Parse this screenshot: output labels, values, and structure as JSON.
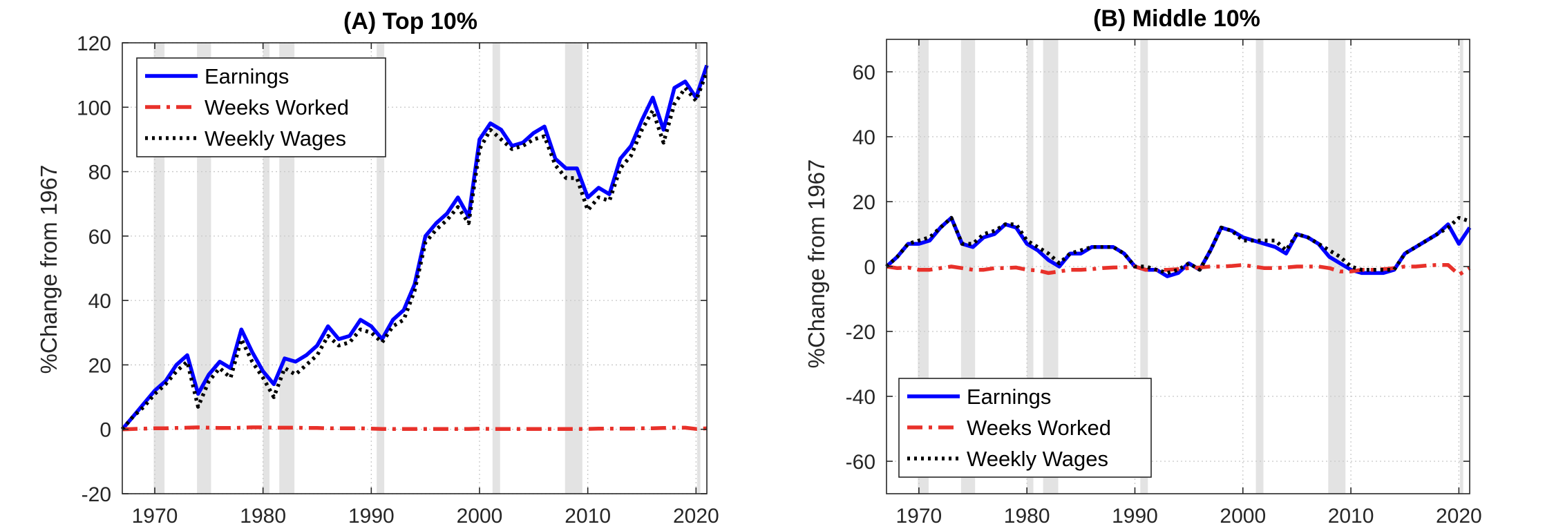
{
  "chart_data": [
    {
      "type": "line",
      "title": "(A) Top 10%",
      "xlabel": "",
      "ylabel": "%Change from 1967",
      "xlim": [
        1967,
        2021
      ],
      "ylim": [
        -20,
        120
      ],
      "xticks": [
        1970,
        1980,
        1990,
        2000,
        2010,
        2020
      ],
      "yticks": [
        -20,
        0,
        20,
        40,
        60,
        80,
        100,
        120
      ],
      "grid": true,
      "legend_position": "top-left",
      "recessions": [
        [
          1969.9,
          1970.9
        ],
        [
          1973.9,
          1975.2
        ],
        [
          1980.0,
          1980.6
        ],
        [
          1981.5,
          1982.9
        ],
        [
          1990.5,
          1991.2
        ],
        [
          2001.2,
          2001.9
        ],
        [
          2007.9,
          2009.5
        ],
        [
          2020.1,
          2020.4
        ]
      ],
      "series": [
        {
          "name": "Earnings",
          "color": "#0000ff",
          "style": "solid",
          "x": [
            1967,
            1968,
            1969,
            1970,
            1971,
            1972,
            1973,
            1974,
            1975,
            1976,
            1977,
            1978,
            1979,
            1980,
            1981,
            1982,
            1983,
            1984,
            1985,
            1986,
            1987,
            1988,
            1989,
            1990,
            1991,
            1992,
            1993,
            1994,
            1995,
            1996,
            1997,
            1998,
            1999,
            2000,
            2001,
            2002,
            2003,
            2004,
            2005,
            2006,
            2007,
            2008,
            2009,
            2010,
            2011,
            2012,
            2013,
            2014,
            2015,
            2016,
            2017,
            2018,
            2019,
            2020,
            2021
          ],
          "y": [
            0,
            4,
            8,
            12,
            15,
            20,
            23,
            11,
            17,
            21,
            19,
            31,
            24,
            18,
            14,
            22,
            21,
            23,
            26,
            32,
            28,
            29,
            34,
            32,
            28,
            34,
            37,
            45,
            60,
            64,
            67,
            72,
            66,
            90,
            95,
            93,
            88,
            89,
            92,
            94,
            84,
            81,
            81,
            72,
            75,
            73,
            84,
            88,
            96,
            103,
            93,
            106,
            108,
            103,
            113
          ]
        },
        {
          "name": "Weeks Worked",
          "color": "#e8312a",
          "style": "dashdot",
          "x": [
            1967,
            1968,
            1969,
            1970,
            1971,
            1972,
            1973,
            1974,
            1975,
            1976,
            1977,
            1978,
            1979,
            1980,
            1981,
            1982,
            1983,
            1984,
            1985,
            1986,
            1987,
            1988,
            1989,
            1990,
            1991,
            1992,
            1993,
            1994,
            1995,
            1996,
            1997,
            1998,
            1999,
            2000,
            2001,
            2002,
            2003,
            2004,
            2005,
            2006,
            2007,
            2008,
            2009,
            2010,
            2011,
            2012,
            2013,
            2014,
            2015,
            2016,
            2017,
            2018,
            2019,
            2020,
            2021
          ],
          "y": [
            0,
            0.1,
            0.2,
            0.3,
            0.3,
            0.4,
            0.5,
            0.6,
            0.5,
            0.4,
            0.4,
            0.5,
            0.6,
            0.6,
            0.5,
            0.5,
            0.5,
            0.4,
            0.4,
            0.3,
            0.3,
            0.3,
            0.3,
            0.2,
            0.1,
            0.1,
            0.1,
            0.1,
            0.1,
            0.1,
            0.1,
            0.1,
            0.1,
            0.2,
            0.1,
            0.1,
            0.1,
            0.1,
            0.1,
            0.1,
            0.1,
            0.1,
            0.1,
            0.1,
            0.2,
            0.2,
            0.2,
            0.2,
            0.3,
            0.3,
            0.4,
            0.5,
            0.5,
            0.1,
            0.3
          ]
        },
        {
          "name": "Weekly Wages",
          "color": "#000000",
          "style": "dotted",
          "x": [
            1967,
            1968,
            1969,
            1970,
            1971,
            1972,
            1973,
            1974,
            1975,
            1976,
            1977,
            1978,
            1979,
            1980,
            1981,
            1982,
            1983,
            1984,
            1985,
            1986,
            1987,
            1988,
            1989,
            1990,
            1991,
            1992,
            1993,
            1994,
            1995,
            1996,
            1997,
            1998,
            1999,
            2000,
            2001,
            2002,
            2003,
            2004,
            2005,
            2006,
            2007,
            2008,
            2009,
            2010,
            2011,
            2012,
            2013,
            2014,
            2015,
            2016,
            2017,
            2018,
            2019,
            2020,
            2021
          ],
          "y": [
            0,
            4,
            7,
            11,
            14,
            18,
            21,
            7,
            15,
            19,
            16,
            28,
            21,
            16,
            10,
            19,
            17,
            20,
            23,
            29,
            26,
            27,
            31,
            30,
            27,
            32,
            34,
            43,
            58,
            62,
            65,
            69,
            64,
            87,
            93,
            90,
            87,
            88,
            90,
            91,
            82,
            78,
            78,
            68,
            72,
            71,
            81,
            85,
            93,
            99,
            89,
            101,
            106,
            102,
            111
          ]
        }
      ]
    },
    {
      "type": "line",
      "title": "(B) Middle 10%",
      "xlabel": "",
      "ylabel": "%Change from 1967",
      "xlim": [
        1967,
        2021
      ],
      "ylim": [
        -70,
        70
      ],
      "xticks": [
        1970,
        1980,
        1990,
        2000,
        2010,
        2020
      ],
      "yticks": [
        -60,
        -40,
        -20,
        0,
        20,
        40,
        60
      ],
      "grid": true,
      "legend_position": "bottom-left",
      "recessions": [
        [
          1969.9,
          1970.9
        ],
        [
          1973.9,
          1975.2
        ],
        [
          1980.0,
          1980.6
        ],
        [
          1981.5,
          1982.9
        ],
        [
          1990.5,
          1991.2
        ],
        [
          2001.2,
          2001.9
        ],
        [
          2007.9,
          2009.5
        ],
        [
          2020.1,
          2020.4
        ]
      ],
      "series": [
        {
          "name": "Earnings",
          "color": "#0000ff",
          "style": "solid",
          "x": [
            1967,
            1968,
            1969,
            1970,
            1971,
            1972,
            1973,
            1974,
            1975,
            1976,
            1977,
            1978,
            1979,
            1980,
            1981,
            1982,
            1983,
            1984,
            1985,
            1986,
            1987,
            1988,
            1989,
            1990,
            1991,
            1992,
            1993,
            1994,
            1995,
            1996,
            1997,
            1998,
            1999,
            2000,
            2001,
            2002,
            2003,
            2004,
            2005,
            2006,
            2007,
            2008,
            2009,
            2010,
            2011,
            2012,
            2013,
            2014,
            2015,
            2016,
            2017,
            2018,
            2019,
            2020,
            2021
          ],
          "y": [
            0,
            3,
            7,
            7,
            8,
            12,
            15,
            7,
            6,
            9,
            10,
            13,
            12,
            7,
            5,
            2,
            0,
            4,
            4,
            6,
            6,
            6,
            4,
            0,
            -1,
            -1,
            -3,
            -2,
            1,
            -1,
            5,
            12,
            11,
            9,
            8,
            7,
            6,
            4,
            10,
            9,
            7,
            3,
            1,
            -1,
            -2,
            -2,
            -2,
            -1,
            4,
            6,
            8,
            10,
            13,
            7,
            12
          ]
        },
        {
          "name": "Weeks Worked",
          "color": "#e8312a",
          "style": "dashdot",
          "x": [
            1967,
            1968,
            1969,
            1970,
            1971,
            1972,
            1973,
            1974,
            1975,
            1976,
            1977,
            1978,
            1979,
            1980,
            1981,
            1982,
            1983,
            1984,
            1985,
            1986,
            1987,
            1988,
            1989,
            1990,
            1991,
            1992,
            1993,
            1994,
            1995,
            1996,
            1997,
            1998,
            1999,
            2000,
            2001,
            2002,
            2003,
            2004,
            2005,
            2006,
            2007,
            2008,
            2009,
            2010,
            2011,
            2012,
            2013,
            2014,
            2015,
            2016,
            2017,
            2018,
            2019,
            2020,
            2021
          ],
          "y": [
            0,
            -0.5,
            -0.3,
            -1,
            -1,
            -0.5,
            0,
            -0.5,
            -1,
            -1,
            -0.5,
            -0.5,
            -0.3,
            -1,
            -1.2,
            -2,
            -1.5,
            -1,
            -1,
            -0.8,
            -0.5,
            -0.3,
            -0.2,
            0,
            -1,
            -1,
            -1,
            -0.8,
            -0.5,
            -0.3,
            0,
            0,
            0.2,
            0.5,
            0,
            -0.5,
            -0.5,
            -0.3,
            0,
            0,
            0,
            -0.5,
            -1.5,
            -1.5,
            -1,
            -1,
            -0.8,
            -0.5,
            0,
            0,
            0.3,
            0.5,
            0.5,
            -2.5,
            -0.5
          ]
        },
        {
          "name": "Weekly Wages",
          "color": "#000000",
          "style": "dotted",
          "x": [
            1967,
            1968,
            1969,
            1970,
            1971,
            1972,
            1973,
            1974,
            1975,
            1976,
            1977,
            1978,
            1979,
            1980,
            1981,
            1982,
            1983,
            1984,
            1985,
            1986,
            1987,
            1988,
            1989,
            1990,
            1991,
            1992,
            1993,
            1994,
            1995,
            1996,
            1997,
            1998,
            1999,
            2000,
            2001,
            2002,
            2003,
            2004,
            2005,
            2006,
            2007,
            2008,
            2009,
            2010,
            2011,
            2012,
            2013,
            2014,
            2015,
            2016,
            2017,
            2018,
            2019,
            2020,
            2021
          ],
          "y": [
            0,
            3,
            7,
            8,
            9,
            12,
            15,
            7,
            7,
            10,
            11,
            13,
            13,
            8,
            6,
            4,
            1,
            4,
            5,
            6,
            6,
            6,
            4,
            0,
            0,
            -1,
            -2,
            -1,
            1,
            -1,
            5,
            12,
            11,
            8,
            8,
            8,
            8,
            5,
            10,
            9,
            7,
            5,
            3,
            0,
            -1,
            -1,
            -1,
            -1,
            4,
            6,
            8,
            10,
            12,
            15,
            14
          ]
        }
      ]
    }
  ]
}
